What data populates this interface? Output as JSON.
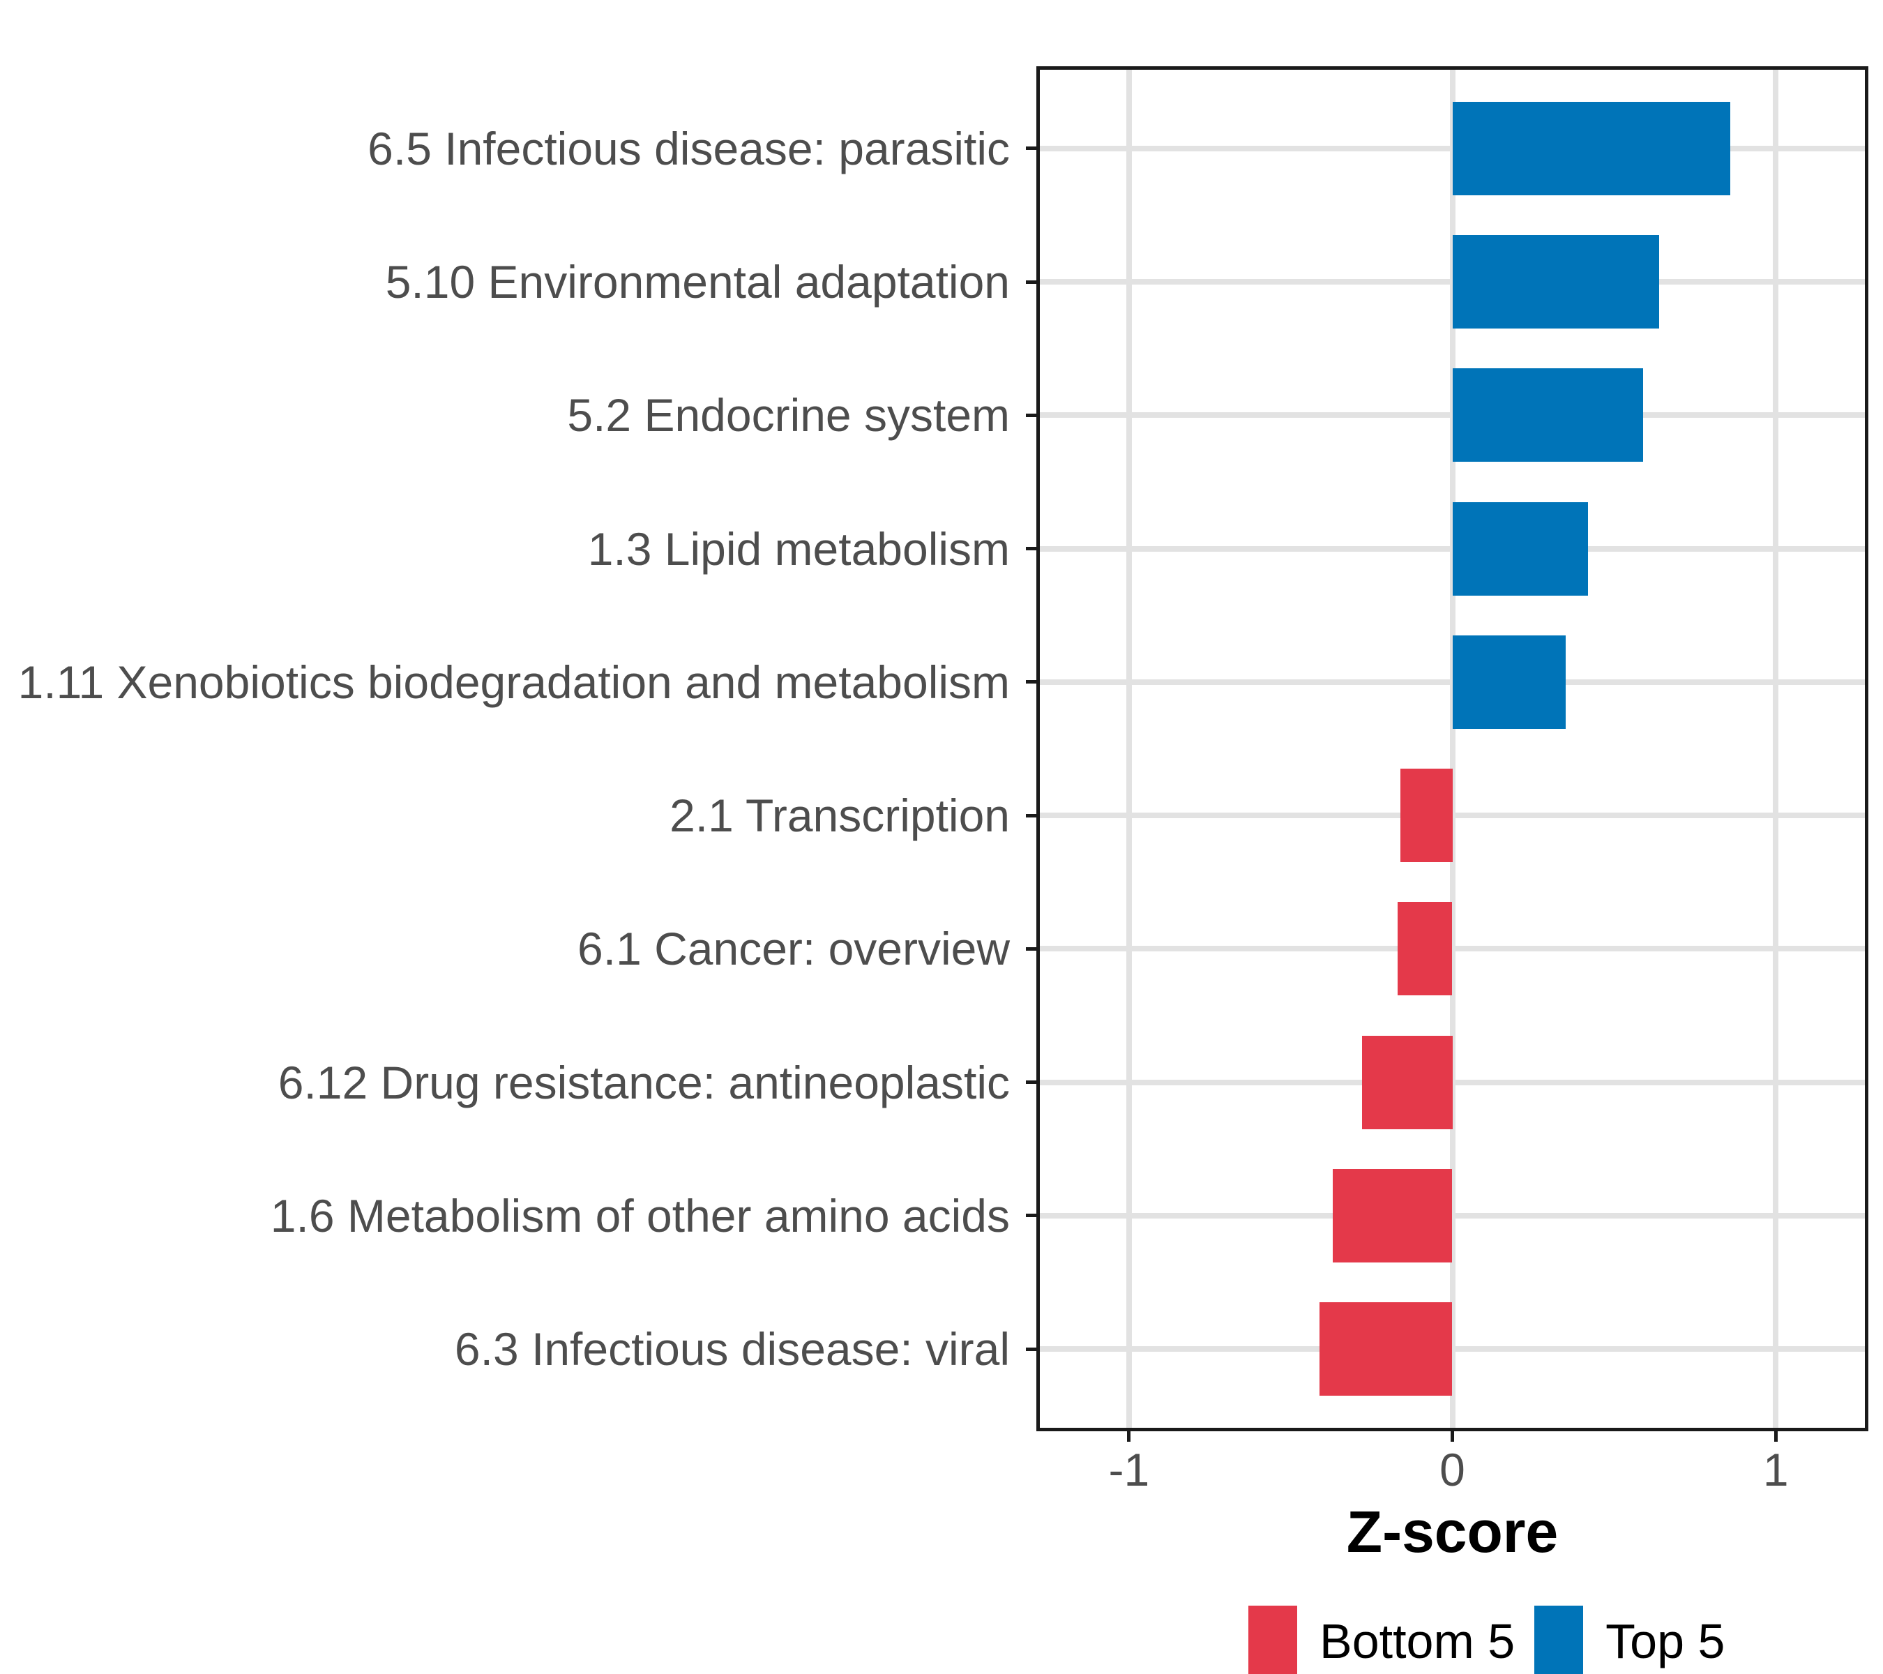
{
  "chart_data": {
    "type": "bar",
    "orientation": "horizontal",
    "title": "",
    "xlabel": "Z-score",
    "ylabel": "",
    "xlim": [
      -1.28,
      1.28
    ],
    "x_ticks": [
      -1,
      0,
      1
    ],
    "x_tick_labels": [
      "-1",
      "0",
      "1"
    ],
    "grid": "major-only",
    "legend_position": "bottom",
    "bar_width_fraction": 0.7,
    "categories": [
      "6.5 Infectious disease: parasitic",
      "5.10 Environmental adaptation",
      "5.2 Endocrine system",
      "1.3 Lipid metabolism",
      "1.11 Xenobiotics biodegradation and metabolism",
      "2.1 Transcription",
      "6.1 Cancer: overview",
      "6.12 Drug resistance: antineoplastic",
      "1.6 Metabolism of other amino acids",
      "6.3 Infectious disease: viral"
    ],
    "values": [
      0.86,
      0.64,
      0.59,
      0.42,
      0.35,
      -0.16,
      -0.17,
      -0.28,
      -0.37,
      -0.41
    ],
    "groups": [
      "Top 5",
      "Top 5",
      "Top 5",
      "Top 5",
      "Top 5",
      "Bottom 5",
      "Bottom 5",
      "Bottom 5",
      "Bottom 5",
      "Bottom 5"
    ],
    "legend": [
      {
        "label": "Bottom 5",
        "color": "#E4394A"
      },
      {
        "label": "Top 5",
        "color": "#0074B8"
      }
    ],
    "style": {
      "bar_color_top5": "#0074B8",
      "bar_color_bottom5": "#E4394A",
      "gridline_color": "#e2e2e2",
      "panel_border_color": "#1a1a1a",
      "axis_text_color": "#4d4d4d",
      "title_text_color": "#000000",
      "background": "#ffffff"
    }
  }
}
